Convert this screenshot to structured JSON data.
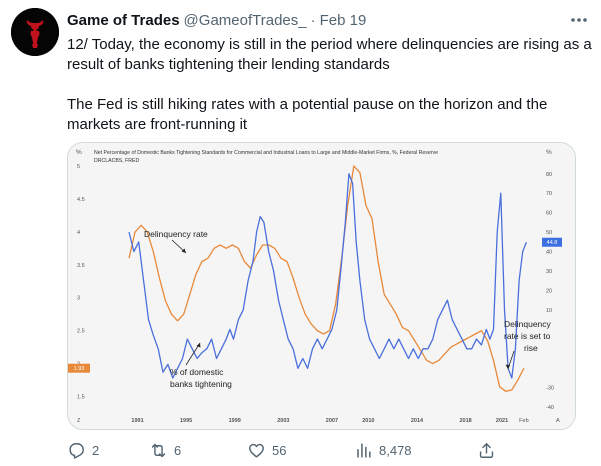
{
  "tweet": {
    "author_name": "Game of Trades",
    "handle": "@GameofTrades_",
    "separator": "·",
    "date": "Feb 19",
    "text_paragraph_1": "12/ Today, the economy is still in the period where delinquencies are rising as a result of banks tightening their lending standards",
    "text_paragraph_2": "The Fed is still hiking rates with a potential pause on the horizon and the markets are front-running it"
  },
  "actions": {
    "replies": "2",
    "retweets": "6",
    "likes": "56",
    "views": "8,478"
  },
  "icons": {
    "avatar": "bull-logo",
    "more": "more-dots-icon",
    "reply": "reply-icon",
    "retweet": "retweet-icon",
    "like": "heart-icon",
    "views": "views-icon",
    "share": "share-icon"
  },
  "colors": {
    "text": "#0f1419",
    "secondary": "#536471",
    "delinquency_line": "#e8893a",
    "tightening_line": "#4a6fdc",
    "avatar_bg": "#050505",
    "avatar_mark": "#c0121c"
  },
  "chart_data": {
    "type": "line",
    "title": "Net Percentage of Domestic Banks Tightening Standards for Commercial and Industrial Loans to Large and Middle-Market Firms, %, Federal Reserve",
    "subtitle": "DRCLACBS, FRED",
    "left_unit": "%",
    "right_unit": "%",
    "x_ticks": [
      "1991",
      "1995",
      "1999",
      "2003",
      "2007",
      "2010",
      "2014",
      "2018",
      "2021",
      "Feb"
    ],
    "left_ticks": [
      "5",
      "4.5",
      "4",
      "3.5",
      "3",
      "2.5",
      "2",
      "1.5"
    ],
    "right_ticks": [
      "80",
      "70",
      "60",
      "50",
      "40",
      "30",
      "20",
      "10",
      "-30",
      "-40"
    ],
    "left_ylim": [
      1.25,
      5
    ],
    "right_ylim": [
      -43,
      84
    ],
    "left_value_tag": "1.93",
    "right_value_tag": "44.8",
    "bottom_left_tick": "Z",
    "bottom_right_tick": "A",
    "annotations": {
      "delinquency": "Delinquency rate",
      "tightening_line1": "% of domestic",
      "tightening_line2": "banks tightening",
      "forecast_line1": "Delinquency",
      "forecast_line2": "rate is set to",
      "forecast_line3": "rise"
    },
    "series": [
      {
        "name": "Delinquency rate",
        "axis": "left",
        "x": [
          1990.3,
          1990.8,
          1991.3,
          1991.8,
          1992.3,
          1992.8,
          1993.3,
          1993.8,
          1994.3,
          1994.8,
          1995.3,
          1995.8,
          1996.3,
          1996.8,
          1997.3,
          1997.8,
          1998.3,
          1998.8,
          1999.3,
          1999.8,
          2000.3,
          2000.8,
          2001.3,
          2001.8,
          2002.3,
          2002.8,
          2003.3,
          2003.8,
          2004.3,
          2004.8,
          2005.3,
          2005.8,
          2006.3,
          2006.8,
          2007.3,
          2007.8,
          2008.3,
          2008.8,
          2009.3,
          2009.8,
          2010.3,
          2010.8,
          2011.3,
          2011.8,
          2012.3,
          2012.8,
          2013.3,
          2013.8,
          2014.3,
          2014.8,
          2015.3,
          2015.8,
          2016.3,
          2016.8,
          2017.3,
          2017.8,
          2018.3,
          2018.8,
          2019.3,
          2019.8,
          2020.3,
          2020.8,
          2021.3,
          2021.8,
          2022.3,
          2022.8
        ],
        "values": [
          3.6,
          4.0,
          4.1,
          4.0,
          3.7,
          3.3,
          2.95,
          2.75,
          2.65,
          2.75,
          3.05,
          3.35,
          3.55,
          3.6,
          3.75,
          3.8,
          3.75,
          3.8,
          3.75,
          3.55,
          3.45,
          3.65,
          3.8,
          3.8,
          3.75,
          3.6,
          3.55,
          3.3,
          3.0,
          2.75,
          2.6,
          2.5,
          2.45,
          2.5,
          2.9,
          3.6,
          4.4,
          5.0,
          4.9,
          4.4,
          4.2,
          3.55,
          3.05,
          2.9,
          2.75,
          2.55,
          2.5,
          2.35,
          2.2,
          2.05,
          2.0,
          2.05,
          2.15,
          2.25,
          2.3,
          2.35,
          2.4,
          2.45,
          2.5,
          2.35,
          2.05,
          1.65,
          1.58,
          1.6,
          1.75,
          1.93
        ]
      },
      {
        "name": "% of domestic banks tightening",
        "axis": "right",
        "x": [
          1990.3,
          1990.7,
          1991.1,
          1991.5,
          1991.9,
          1992.3,
          1992.7,
          1993.1,
          1993.5,
          1993.9,
          1994.3,
          1994.7,
          1995.1,
          1995.5,
          1995.9,
          1996.3,
          1996.7,
          1997.1,
          1997.5,
          1997.9,
          1998.3,
          1998.6,
          1998.9,
          1999.3,
          1999.7,
          2000.1,
          2000.5,
          2000.8,
          2001.1,
          2001.4,
          2001.8,
          2002.2,
          2002.6,
          2003.0,
          2003.4,
          2003.8,
          2004.2,
          2004.6,
          2005.0,
          2005.4,
          2005.8,
          2006.2,
          2006.6,
          2007.0,
          2007.4,
          2007.8,
          2008.1,
          2008.4,
          2008.7,
          2009.0,
          2009.3,
          2009.7,
          2010.1,
          2010.5,
          2010.9,
          2011.3,
          2011.7,
          2012.1,
          2012.5,
          2012.9,
          2013.3,
          2013.7,
          2014.1,
          2014.5,
          2014.9,
          2015.3,
          2015.7,
          2016.1,
          2016.5,
          2016.9,
          2017.3,
          2017.7,
          2018.1,
          2018.5,
          2018.9,
          2019.3,
          2019.7,
          2020.0,
          2020.3,
          2020.6,
          2020.9,
          2021.2,
          2021.5,
          2021.8,
          2022.1,
          2022.4,
          2022.7,
          2023.0
        ],
        "values": [
          50,
          40,
          45,
          25,
          5,
          -3,
          -10,
          -22,
          -18,
          -25,
          -20,
          -15,
          -5,
          -10,
          -15,
          -12,
          -10,
          -5,
          -15,
          -10,
          -5,
          0,
          -5,
          5,
          10,
          25,
          35,
          50,
          58,
          55,
          40,
          30,
          15,
          5,
          -5,
          -10,
          -20,
          -15,
          -20,
          -10,
          -5,
          -10,
          -5,
          0,
          10,
          35,
          55,
          80,
          75,
          45,
          25,
          5,
          -5,
          -10,
          -15,
          -10,
          -5,
          -10,
          -5,
          -10,
          -15,
          -10,
          -15,
          -10,
          -10,
          -5,
          5,
          10,
          15,
          5,
          0,
          -5,
          -10,
          -10,
          -5,
          -8,
          0,
          -5,
          0,
          50,
          70,
          10,
          -20,
          -25,
          -10,
          25,
          40,
          44.8
        ]
      }
    ]
  }
}
